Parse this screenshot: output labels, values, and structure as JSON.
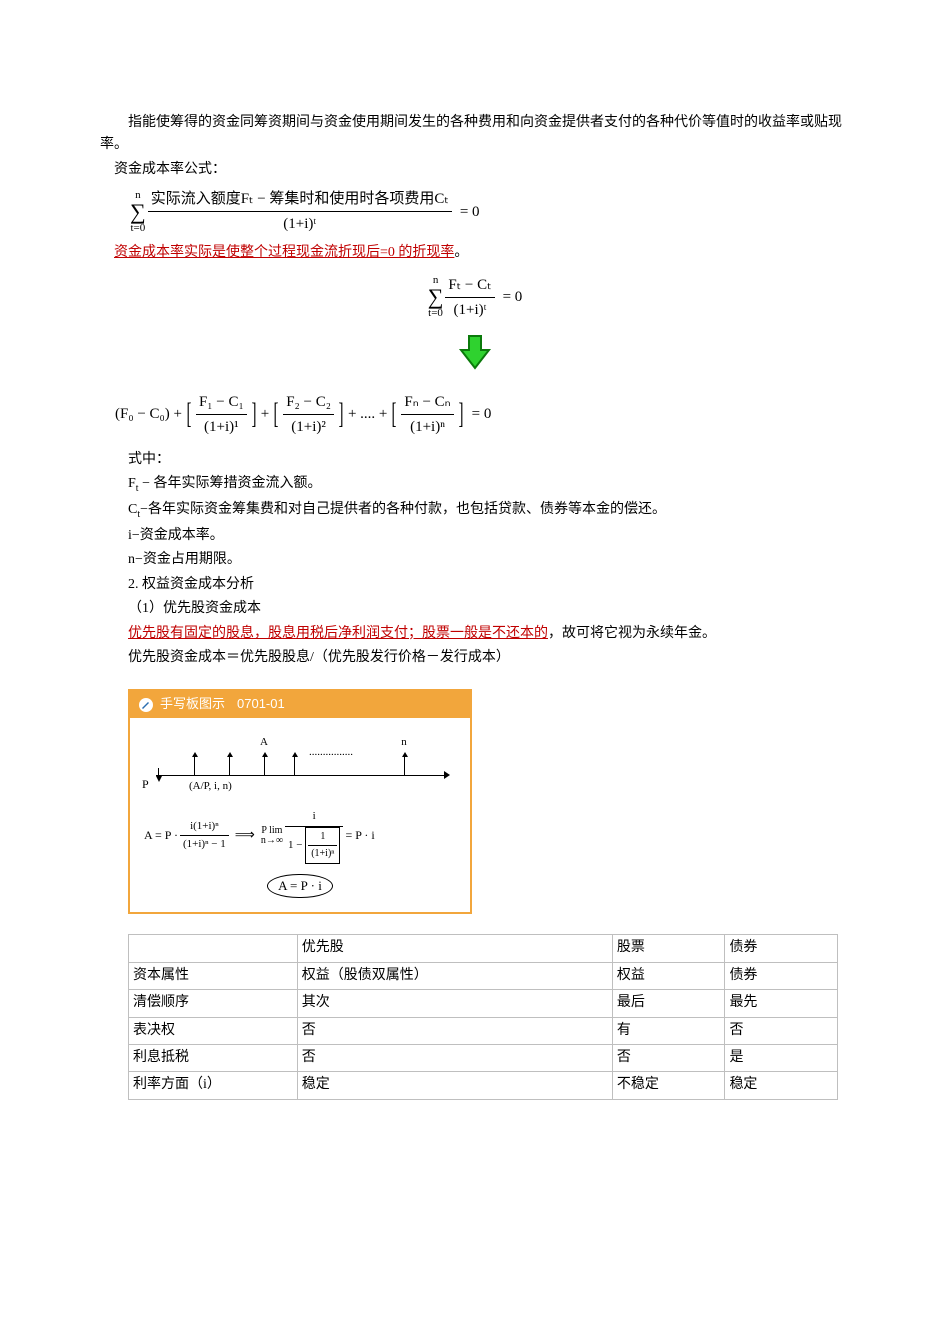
{
  "intro": {
    "p1": "指能使筹得的资金同筹资期间与资金使用期间发生的各种费用和向资金提供者支付的各种代价等值时的收益率或贴现率。",
    "p2": "资金成本率公式："
  },
  "formula1": {
    "sum_top": "n",
    "sum_bot": "t=0",
    "num": "实际流入额度Fₜ − 筹集时和使用时各项费用Cₜ",
    "den": "(1+i)ᵗ",
    "rhs": "= 0"
  },
  "red1": "资金成本率实际是使整个过程现金流折现后=0 的折现率",
  "red1_tail": "。",
  "formula2": {
    "sum_top": "n",
    "sum_bot": "t=0",
    "num": "Fₜ − Cₜ",
    "den": "(1+i)ᵗ",
    "rhs": "= 0"
  },
  "arrow_color_border": "#0b7a0b",
  "arrow_color_fill": "#2fd22f",
  "formula3": {
    "t0": "(F₀ − C₀) +",
    "n1": "F₁ − C₁",
    "d1": "(1+i)¹",
    "n2": "F₂ − C₂",
    "d2": "(1+i)²",
    "mid": "+ .... +",
    "nn": "Fₙ − Cₙ",
    "dn": "(1+i)ⁿ",
    "rhs": "= 0"
  },
  "defs": {
    "head": "式中：",
    "l1a": "F",
    "l1b": "t",
    "l1c": " − 各年实际筹措资金流入额。",
    "l2a": "C",
    "l2b": "t",
    "l2c": "−各年实际资金筹集费和对自己提供者的各种付款，也包括贷款、债券等本金的偿还。",
    "l3": "i−资金成本率。",
    "l4": "n−资金占用期限。",
    "l5": "2. 权益资金成本分析",
    "l6": "（1）优先股资金成本"
  },
  "red2": "优先股有固定的股息，股息用税后净利润支付；股票一般是不还本的",
  "red2_tail": "，故可将它视为永续年金。",
  "pref_formula": "优先股资金成本＝优先股股息/（优先股发行价格－发行成本）",
  "diagram": {
    "title": "手写板图示",
    "code": "0701-01",
    "A_label": "A",
    "n_label": "n",
    "dots": "................",
    "P_label": "P",
    "AP": "(A/P, i, n)",
    "eq_left": "A = P ·",
    "fr1_num": "i(1+i)ⁿ",
    "fr1_den": "(1+i)ⁿ − 1",
    "arrow": "⟹",
    "lim": "P lim",
    "lim_sub": "n→∞",
    "fr2_num": "i",
    "fr2_den_pre": "1 − ",
    "fr2_inner_num": "1",
    "fr2_inner_den": "(1+i)ⁿ",
    "eq_right": " = P · i",
    "boxed": "A = P · i"
  },
  "table": {
    "headers": [
      "",
      "优先股",
      "股票",
      "债券"
    ],
    "rows": [
      [
        "资本属性",
        "权益（股债双属性）",
        "权益",
        "债券"
      ],
      [
        "清偿顺序",
        "其次",
        "最后",
        "最先"
      ],
      [
        "表决权",
        "否",
        "有",
        "否"
      ],
      [
        "利息抵税",
        "否",
        "否",
        "是"
      ],
      [
        "利率方面（i）",
        "稳定",
        "不稳定",
        "稳定"
      ]
    ],
    "col_widths": [
      "150px",
      "280px",
      "100px",
      "100px"
    ],
    "border_color": "#bfbfbf"
  }
}
